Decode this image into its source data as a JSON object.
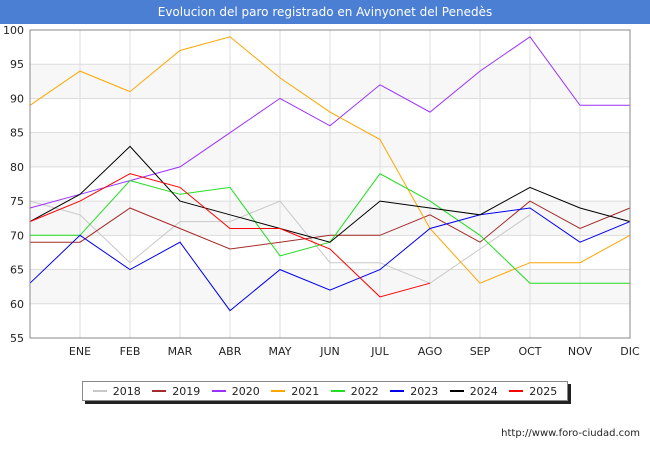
{
  "title": "Evolucion del paro registrado en Avinyonet del Penedès",
  "source": "http://www.foro-ciudad.com",
  "chart_data": {
    "type": "line",
    "categories": [
      "",
      "ENE",
      "FEB",
      "MAR",
      "ABR",
      "MAY",
      "JUN",
      "JUL",
      "AGO",
      "SEP",
      "OCT",
      "NOV",
      "DIC"
    ],
    "ylim": [
      55,
      100
    ],
    "yticks": [
      55,
      60,
      65,
      70,
      75,
      80,
      85,
      90,
      95,
      100
    ],
    "grid": true,
    "legend_position": "bottom",
    "series": [
      {
        "name": "2018",
        "color": "#c8c8c8",
        "values": [
          75,
          73,
          66,
          72,
          72,
          75,
          66,
          66,
          63,
          68,
          73,
          null,
          null
        ]
      },
      {
        "name": "2019",
        "color": "#a52a2a",
        "values": [
          69,
          69,
          74,
          71,
          68,
          69,
          70,
          70,
          73,
          69,
          75,
          71,
          74
        ]
      },
      {
        "name": "2020",
        "color": "#9b30ff",
        "values": [
          74,
          76,
          78,
          80,
          85,
          90,
          86,
          92,
          88,
          94,
          99,
          89,
          89
        ]
      },
      {
        "name": "2021",
        "color": "#ffa500",
        "values": [
          89,
          94,
          91,
          97,
          99,
          93,
          88,
          84,
          71,
          63,
          66,
          66,
          70
        ]
      },
      {
        "name": "2022",
        "color": "#22dd22",
        "values": [
          70,
          70,
          78,
          76,
          77,
          67,
          69,
          79,
          75,
          70,
          63,
          63,
          63
        ]
      },
      {
        "name": "2023",
        "color": "#0000ee",
        "values": [
          63,
          70,
          65,
          69,
          59,
          65,
          62,
          65,
          71,
          73,
          74,
          69,
          72
        ]
      },
      {
        "name": "2024",
        "color": "#000000",
        "values": [
          72,
          76,
          83,
          75,
          73,
          71,
          69,
          75,
          74,
          73,
          77,
          74,
          72
        ]
      },
      {
        "name": "2025",
        "color": "#ff0000",
        "values": [
          72,
          75,
          79,
          77,
          71,
          71,
          68,
          61,
          63,
          null,
          null,
          null,
          null
        ]
      }
    ]
  }
}
